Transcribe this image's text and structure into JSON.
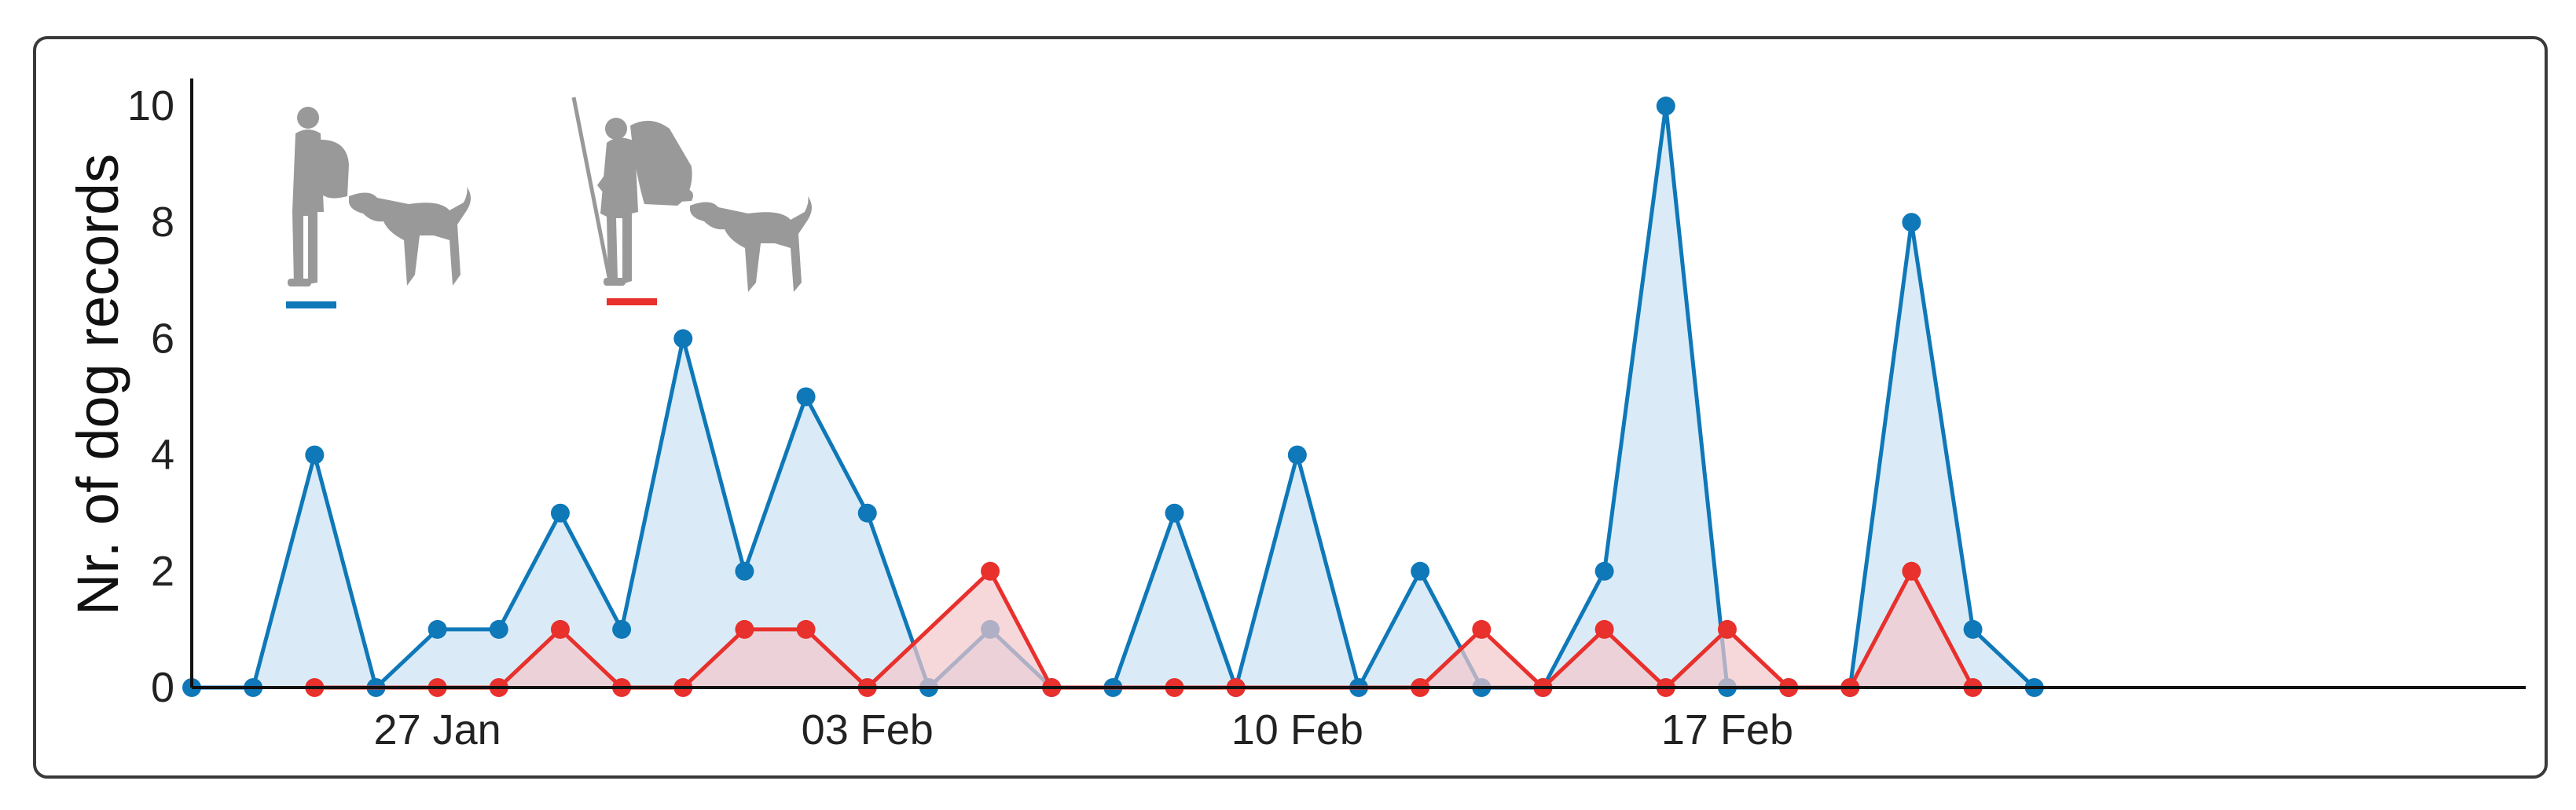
{
  "chart_data": {
    "type": "area",
    "ylabel": "Nr. of dog records",
    "xlabel": "",
    "ylim": [
      0,
      10.5
    ],
    "yticks": [
      0,
      2,
      4,
      6,
      8,
      10
    ],
    "x_range": [
      "2019-01-23",
      "2019-03-02"
    ],
    "xtick_labels": [
      {
        "date": "2019-01-27",
        "label": "27 Jan"
      },
      {
        "date": "2019-02-03",
        "label": "03 Feb"
      },
      {
        "date": "2019-02-10",
        "label": "10 Feb"
      },
      {
        "date": "2019-02-17",
        "label": "17 Feb"
      }
    ],
    "grid": false,
    "legend": "top-left, pictograms: person with dog (blue), hiker with dog (red)",
    "series": [
      {
        "color": "#0f78b8",
        "fill": "#d4e8f6",
        "points": [
          [
            "2019-01-23",
            0
          ],
          [
            "2019-01-24",
            0
          ],
          [
            "2019-01-25",
            4
          ],
          [
            "2019-01-26",
            0
          ],
          [
            "2019-01-27",
            1
          ],
          [
            "2019-01-28",
            1
          ],
          [
            "2019-01-29",
            3
          ],
          [
            "2019-01-30",
            1
          ],
          [
            "2019-01-31",
            6
          ],
          [
            "2019-02-01",
            2
          ],
          [
            "2019-02-02",
            5
          ],
          [
            "2019-02-03",
            3
          ],
          [
            "2019-02-04",
            0
          ],
          [
            "2019-02-05",
            1
          ],
          [
            "2019-02-06",
            0
          ],
          [
            "2019-02-07",
            0
          ],
          [
            "2019-02-08",
            3
          ],
          [
            "2019-02-09",
            0
          ],
          [
            "2019-02-10",
            4
          ],
          [
            "2019-02-11",
            0
          ],
          [
            "2019-02-12",
            2
          ],
          [
            "2019-02-13",
            0
          ],
          [
            "2019-02-14",
            0
          ],
          [
            "2019-02-15",
            2
          ],
          [
            "2019-02-16",
            10
          ],
          [
            "2019-02-17",
            0
          ],
          [
            "2019-02-18",
            0
          ],
          [
            "2019-02-19",
            0
          ],
          [
            "2019-02-20",
            8
          ],
          [
            "2019-02-21",
            1
          ],
          [
            "2019-02-22",
            0
          ]
        ]
      },
      {
        "color": "#e8302c",
        "fill": "#f3c7cb",
        "points": [
          [
            "2019-01-25",
            0
          ],
          [
            "2019-01-27",
            0
          ],
          [
            "2019-01-28",
            0
          ],
          [
            "2019-01-29",
            1
          ],
          [
            "2019-01-30",
            0
          ],
          [
            "2019-01-31",
            0
          ],
          [
            "2019-02-01",
            1
          ],
          [
            "2019-02-02",
            1
          ],
          [
            "2019-02-03",
            0
          ],
          [
            "2019-02-05",
            2
          ],
          [
            "2019-02-06",
            0
          ],
          [
            "2019-02-08",
            0
          ],
          [
            "2019-02-09",
            0
          ],
          [
            "2019-02-12",
            0
          ],
          [
            "2019-02-13",
            1
          ],
          [
            "2019-02-14",
            0
          ],
          [
            "2019-02-15",
            1
          ],
          [
            "2019-02-16",
            0
          ],
          [
            "2019-02-17",
            1
          ],
          [
            "2019-02-18",
            0
          ],
          [
            "2019-02-19",
            0
          ],
          [
            "2019-02-20",
            2
          ],
          [
            "2019-02-21",
            0
          ]
        ]
      }
    ]
  }
}
